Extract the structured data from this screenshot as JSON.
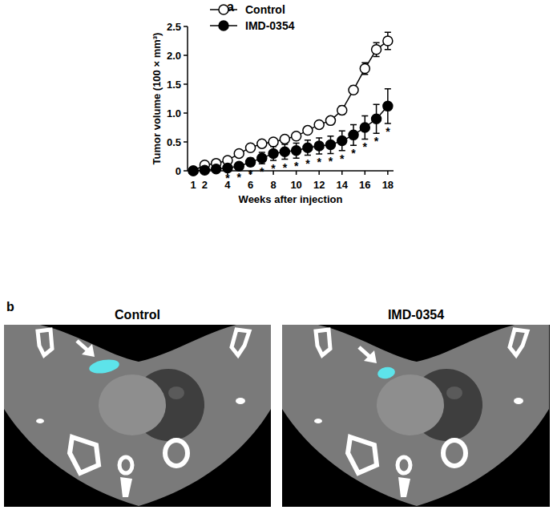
{
  "panel_labels": [
    "a",
    "b"
  ],
  "chart_data": {
    "type": "line",
    "x_label": "Weeks after injection",
    "y_label": "Tumor volume (100 × mm³)",
    "x": [
      1,
      2,
      3,
      4,
      5,
      6,
      7,
      8,
      9,
      10,
      11,
      12,
      13,
      14,
      15,
      16,
      17,
      18
    ],
    "xlim": [
      0.5,
      18.5
    ],
    "xticks": [
      1,
      2,
      4,
      6,
      8,
      10,
      12,
      14,
      16,
      18
    ],
    "ylim": [
      0,
      2.5
    ],
    "yticks": [
      0,
      {
        "value": 0.5,
        "label": "0.5"
      },
      {
        "value": 1,
        "label": "1.0"
      },
      {
        "value": 1.5,
        "label": "1.5"
      },
      {
        "value": 2,
        "label": "2.0"
      },
      {
        "value": 2.5,
        "label": "2.5"
      }
    ],
    "grid": false,
    "legend": "top-left",
    "series": [
      {
        "name": "Control",
        "color": "#000000",
        "marker": "circle-open",
        "line_style": "solid",
        "values": [
          0,
          0.1,
          0.13,
          0.18,
          0.3,
          0.4,
          0.47,
          0.5,
          0.55,
          0.6,
          0.7,
          0.8,
          0.87,
          1.05,
          1.4,
          1.77,
          2.1,
          2.25
        ],
        "errors": [
          0.01,
          0.03,
          0.03,
          0.03,
          0.03,
          0.03,
          0.04,
          0.04,
          0.05,
          0.05,
          0.04,
          0.04,
          0.04,
          0.07,
          0.07,
          0.1,
          0.12,
          0.15
        ]
      },
      {
        "name": "IMD-0354",
        "color": "#000000",
        "marker": "circle",
        "line_style": "solid",
        "values": [
          0,
          0.01,
          0.03,
          0.05,
          0.08,
          0.15,
          0.22,
          0.3,
          0.33,
          0.35,
          0.4,
          0.43,
          0.45,
          0.52,
          0.62,
          0.75,
          0.9,
          1.12
        ],
        "errors": [
          0.01,
          0.01,
          0.02,
          0.04,
          0.05,
          0.07,
          0.1,
          0.12,
          0.13,
          0.13,
          0.13,
          0.14,
          0.15,
          0.17,
          0.18,
          0.2,
          0.25,
          0.3
        ]
      }
    ],
    "significance": [
      null,
      null,
      null,
      "*",
      "*",
      "*",
      "*",
      "*",
      "*",
      "*",
      "*",
      "*",
      "*",
      "*",
      "*",
      "*",
      "*",
      "*"
    ]
  },
  "images": {
    "panels": [
      {
        "title": "Control",
        "tumor_color": "#5de3ea"
      },
      {
        "title": "IMD-0354",
        "tumor_color": "#5de3ea"
      }
    ]
  }
}
